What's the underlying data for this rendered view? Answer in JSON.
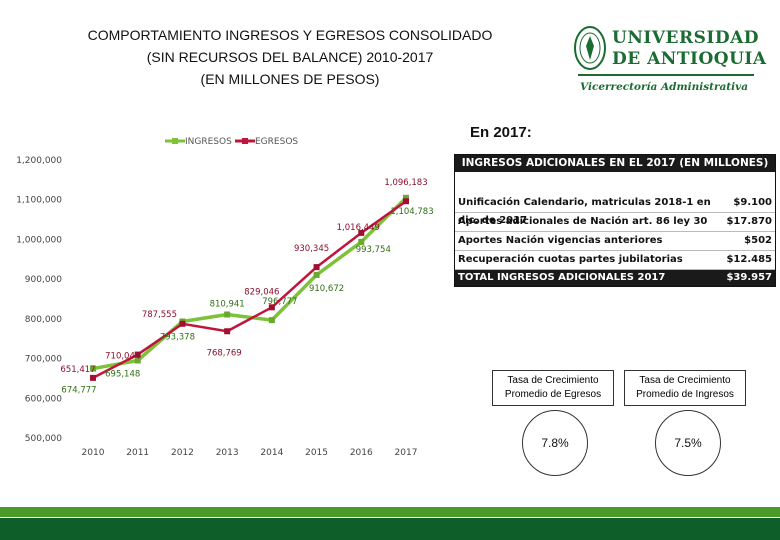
{
  "title_lines": [
    "COMPORTAMIENTO INGRESOS Y EGRESOS CONSOLIDADO",
    "(SIN RECURSOS DEL BALANCE) 2010-2017",
    "(EN MILLONES DE PESOS)"
  ],
  "logo": {
    "line1": "UNIVERSIDAD",
    "line2": "DE ANTIOQUIA",
    "subtitle": "Vicerrectoría Administrativa"
  },
  "en_2017_label": "En 2017:",
  "chart_data": {
    "type": "line",
    "title": "",
    "xlabel": "",
    "ylabel": "",
    "categories": [
      "2010",
      "2011",
      "2012",
      "2013",
      "2014",
      "2015",
      "2016",
      "2017"
    ],
    "ylim": [
      500000,
      1200000
    ],
    "yticks": [
      "500,000",
      "600,000",
      "700,000",
      "800,000",
      "900,000",
      "1,000,000",
      "1,100,000",
      "1,200,000"
    ],
    "legend_position": "top",
    "grid": false,
    "series": [
      {
        "name": "INGRESOS",
        "color": "#7ec23a",
        "values": [
          674777,
          695148,
          793378,
          810941,
          796777,
          910672,
          993754,
          1104783
        ],
        "labels": [
          "674,777",
          "695,148",
          "793,378",
          "810,941",
          "796,777",
          "910,672",
          "993,754",
          "1,104,783"
        ]
      },
      {
        "name": "EGRESOS",
        "color": "#c0143c",
        "values": [
          651417,
          710044,
          787555,
          768769,
          829046,
          930345,
          1016449,
          1096183
        ],
        "labels": [
          "651,417",
          "710,044",
          "787,555",
          "768,769",
          "829,046",
          "930,345",
          "1,016,449",
          "1,096,183"
        ]
      }
    ]
  },
  "table": {
    "header": "INGRESOS ADICIONALES EN EL 2017 (EN MILLONES)",
    "rows": [
      {
        "label": "Unificación Calendario, matriculas 2018-1 en dic. de 2017",
        "value": "$9.100"
      },
      {
        "label": "Aportes adicionales de Nación art. 86 ley 30",
        "value": "$17.870"
      },
      {
        "label": "Aportes Nación vigencias anteriores",
        "value": "$502"
      },
      {
        "label": "Recuperación cuotas partes jubilatorias",
        "value": "$12.485"
      }
    ],
    "total_label": "TOTAL INGRESOS ADICIONALES 2017",
    "total_value": "$39.957"
  },
  "growth": {
    "egresos_label": "Tasa de Crecimiento Promedio de Egresos",
    "egresos_value": "7.8%",
    "ingresos_label": "Tasa de Crecimiento Promedio de Ingresos",
    "ingresos_value": "7.5%"
  }
}
